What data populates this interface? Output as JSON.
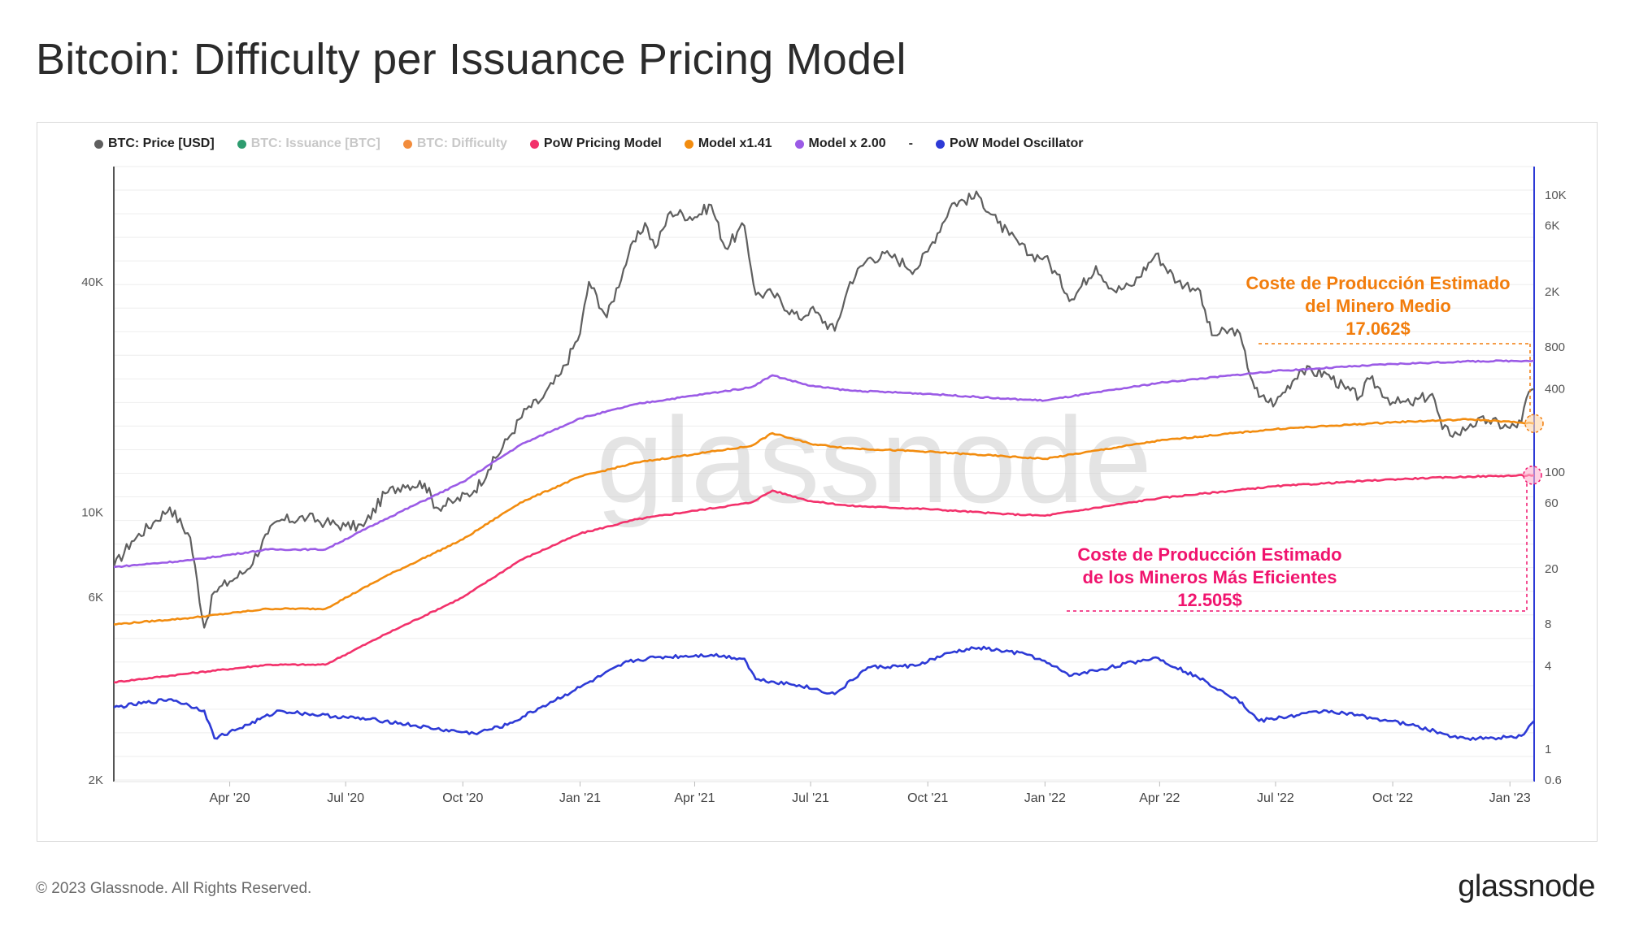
{
  "page": {
    "title": "Bitcoin: Difficulty per Issuance Pricing Model",
    "footer": "© 2023 Glassnode. All Rights Reserved.",
    "brand": "glassnode",
    "watermark": "glassnode"
  },
  "legend": [
    {
      "label": "BTC: Price [USD]",
      "color": "#5f5f5f",
      "muted": false
    },
    {
      "label": "BTC: Issuance [BTC]",
      "color": "#2e9c6f",
      "muted": true
    },
    {
      "label": "BTC: Difficulty",
      "color": "#f28c3c",
      "muted": true
    },
    {
      "label": "PoW Pricing Model",
      "color": "#f2316b",
      "muted": false
    },
    {
      "label": "Model x1.41",
      "color": "#f28c0f",
      "muted": false
    },
    {
      "label": "Model x 2.00",
      "color": "#9b5be6",
      "muted": false
    },
    {
      "label": "-",
      "color": "",
      "muted": false,
      "separator": true
    },
    {
      "label": "PoW Model Oscillator",
      "color": "#2d3ad6",
      "muted": false
    }
  ],
  "annotations": {
    "miner_avg": {
      "lines": [
        "Coste de Producción Estimado",
        "del Minero Medio",
        "17.062$"
      ],
      "color": "#f27d0c",
      "value": 17062
    },
    "miner_efficient": {
      "lines": [
        "Coste de Producción Estimado",
        "de los Mineros Más Eficientes",
        "12.505$"
      ],
      "color": "#f0146e",
      "value": 12505
    }
  },
  "chart_data": {
    "type": "line",
    "x_range": [
      "2020-01-01",
      "2023-01-20"
    ],
    "x_ticks": [
      "Apr '20",
      "Jul '20",
      "Oct '20",
      "Jan '21",
      "Apr '21",
      "Jul '21",
      "Oct '21",
      "Jan '22",
      "Apr '22",
      "Jul '22",
      "Oct '22",
      "Jan '23"
    ],
    "y_left": {
      "scale": "log",
      "range": [
        2000,
        80000
      ],
      "ticks": [
        "2K",
        "6K",
        "10K",
        "40K"
      ],
      "tick_values": [
        2000,
        6000,
        10000,
        40000
      ]
    },
    "y_right": {
      "scale": "log",
      "range": [
        0.6,
        16000
      ],
      "ticks": [
        "0.6",
        "1",
        "4",
        "8",
        "20",
        "60",
        "100",
        "400",
        "800",
        "2K",
        "6K",
        "10K"
      ],
      "tick_values": [
        0.6,
        1,
        4,
        8,
        20,
        60,
        100,
        400,
        800,
        2000,
        6000,
        10000
      ]
    },
    "grid": true,
    "legend_position": "top-left",
    "series": [
      {
        "name": "BTC: Price [USD]",
        "color": "#5f5f5f",
        "axis": "left",
        "x": [
          "2020-01-01",
          "2020-01-15",
          "2020-02-01",
          "2020-02-14",
          "2020-03-01",
          "2020-03-12",
          "2020-03-20",
          "2020-04-01",
          "2020-04-15",
          "2020-05-01",
          "2020-05-10",
          "2020-06-01",
          "2020-06-15",
          "2020-07-01",
          "2020-07-15",
          "2020-08-01",
          "2020-08-15",
          "2020-09-01",
          "2020-09-10",
          "2020-09-25",
          "2020-10-10",
          "2020-10-21",
          "2020-11-05",
          "2020-11-20",
          "2020-12-01",
          "2020-12-17",
          "2021-01-01",
          "2021-01-08",
          "2021-01-22",
          "2021-02-08",
          "2021-02-21",
          "2021-03-01",
          "2021-03-13",
          "2021-04-01",
          "2021-04-14",
          "2021-04-25",
          "2021-05-10",
          "2021-05-19",
          "2021-06-01",
          "2021-06-22",
          "2021-07-01",
          "2021-07-20",
          "2021-08-01",
          "2021-08-15",
          "2021-09-01",
          "2021-09-21",
          "2021-10-01",
          "2021-10-20",
          "2021-11-10",
          "2021-11-25",
          "2021-12-04",
          "2021-12-20",
          "2022-01-01",
          "2022-01-22",
          "2022-02-10",
          "2022-02-24",
          "2022-03-10",
          "2022-03-29",
          "2022-04-15",
          "2022-05-01",
          "2022-05-12",
          "2022-06-01",
          "2022-06-13",
          "2022-06-18",
          "2022-07-01",
          "2022-07-20",
          "2022-08-10",
          "2022-08-25",
          "2022-09-05",
          "2022-09-13",
          "2022-10-01",
          "2022-10-15",
          "2022-11-01",
          "2022-11-09",
          "2022-11-21",
          "2022-12-01",
          "2022-12-15",
          "2023-01-01",
          "2023-01-10",
          "2023-01-14",
          "2023-01-20"
        ],
        "values": [
          7200,
          8400,
          9400,
          10300,
          8600,
          5000,
          6200,
          6600,
          7100,
          8800,
          9500,
          9700,
          9400,
          9200,
          9200,
          11200,
          11800,
          11900,
          10300,
          10700,
          11400,
          12900,
          15500,
          18600,
          19600,
          23000,
          29300,
          40000,
          32300,
          47000,
          57000,
          49000,
          61000,
          59000,
          63500,
          49000,
          56000,
          37000,
          37300,
          32000,
          34000,
          29800,
          40000,
          46000,
          47000,
          43000,
          48000,
          64000,
          67000,
          57000,
          53000,
          47000,
          46500,
          36000,
          44000,
          38000,
          39000,
          47300,
          40000,
          38500,
          29000,
          30000,
          22000,
          20000,
          19300,
          23500,
          23000,
          21000,
          20000,
          22300,
          19400,
          19200,
          20400,
          16500,
          16000,
          17000,
          17400,
          16600,
          17200,
          19900,
          21000
        ]
      },
      {
        "name": "PoW Pricing Model",
        "color": "#f2316b",
        "axis": "left",
        "x": [
          "2020-01-01",
          "2020-03-01",
          "2020-05-01",
          "2020-06-15",
          "2020-08-01",
          "2020-10-01",
          "2020-11-15",
          "2021-01-01",
          "2021-02-15",
          "2021-04-01",
          "2021-05-15",
          "2021-06-01",
          "2021-07-01",
          "2021-08-01",
          "2021-10-01",
          "2021-12-01",
          "2022-01-01",
          "2022-04-01",
          "2022-07-01",
          "2022-10-01",
          "2022-12-01",
          "2023-01-20"
        ],
        "values": [
          3600,
          3800,
          4000,
          4000,
          4800,
          6000,
          7500,
          8800,
          9600,
          10100,
          10600,
          11400,
          10700,
          10400,
          10200,
          9900,
          9800,
          10900,
          11700,
          12200,
          12400,
          12505
        ]
      },
      {
        "name": "Model x1.41",
        "color": "#f28c0f",
        "axis": "left",
        "x": [
          "2020-01-01",
          "2020-03-01",
          "2020-05-01",
          "2020-06-15",
          "2020-08-01",
          "2020-10-01",
          "2020-11-15",
          "2021-01-01",
          "2021-02-15",
          "2021-04-01",
          "2021-05-15",
          "2021-06-01",
          "2021-07-01",
          "2021-08-01",
          "2021-10-01",
          "2021-12-01",
          "2022-01-01",
          "2022-04-01",
          "2022-07-01",
          "2022-10-01",
          "2022-12-01",
          "2023-01-20"
        ],
        "values": [
          5100,
          5300,
          5600,
          5600,
          6800,
          8500,
          10600,
          12400,
          13500,
          14200,
          14900,
          16100,
          15100,
          14700,
          14400,
          14000,
          13800,
          15400,
          16500,
          17200,
          17500,
          17062
        ]
      },
      {
        "name": "Model x 2.00",
        "color": "#9b5be6",
        "axis": "left",
        "x": [
          "2020-01-01",
          "2020-03-01",
          "2020-05-01",
          "2020-06-15",
          "2020-08-01",
          "2020-10-01",
          "2020-11-15",
          "2021-01-01",
          "2021-02-15",
          "2021-04-01",
          "2021-05-15",
          "2021-06-01",
          "2021-07-01",
          "2021-08-01",
          "2021-10-01",
          "2021-12-01",
          "2022-01-01",
          "2022-04-01",
          "2022-07-01",
          "2022-10-01",
          "2022-12-01",
          "2023-01-20"
        ],
        "values": [
          7200,
          7500,
          8000,
          8000,
          9600,
          12000,
          15000,
          17600,
          19200,
          20200,
          21200,
          22800,
          21400,
          20800,
          20400,
          19800,
          19600,
          21800,
          23400,
          24400,
          24800,
          24900
        ]
      },
      {
        "name": "PoW Model Oscillator",
        "color": "#2d3ad6",
        "axis": "right",
        "x": [
          "2020-01-01",
          "2020-02-15",
          "2020-03-12",
          "2020-03-20",
          "2020-04-15",
          "2020-05-10",
          "2020-06-01",
          "2020-07-01",
          "2020-08-01",
          "2020-09-10",
          "2020-10-10",
          "2020-11-05",
          "2020-12-01",
          "2021-01-01",
          "2021-02-08",
          "2021-03-01",
          "2021-04-14",
          "2021-05-10",
          "2021-05-19",
          "2021-06-22",
          "2021-07-20",
          "2021-08-15",
          "2021-09-21",
          "2021-10-20",
          "2021-11-10",
          "2021-12-20",
          "2022-01-22",
          "2022-03-29",
          "2022-05-01",
          "2022-06-01",
          "2022-06-18",
          "2022-08-10",
          "2022-09-13",
          "2022-10-15",
          "2022-11-09",
          "2022-11-21",
          "2022-12-15",
          "2023-01-10",
          "2023-01-20"
        ],
        "values": [
          2.0,
          2.3,
          1.9,
          1.2,
          1.5,
          1.9,
          1.8,
          1.7,
          1.6,
          1.4,
          1.3,
          1.5,
          2.0,
          2.8,
          4.3,
          4.6,
          4.8,
          4.5,
          3.2,
          2.9,
          2.5,
          3.9,
          4.0,
          5.0,
          5.4,
          4.8,
          3.4,
          4.6,
          3.3,
          2.3,
          1.6,
          1.9,
          1.7,
          1.5,
          1.3,
          1.2,
          1.2,
          1.25,
          1.6
        ]
      }
    ]
  }
}
